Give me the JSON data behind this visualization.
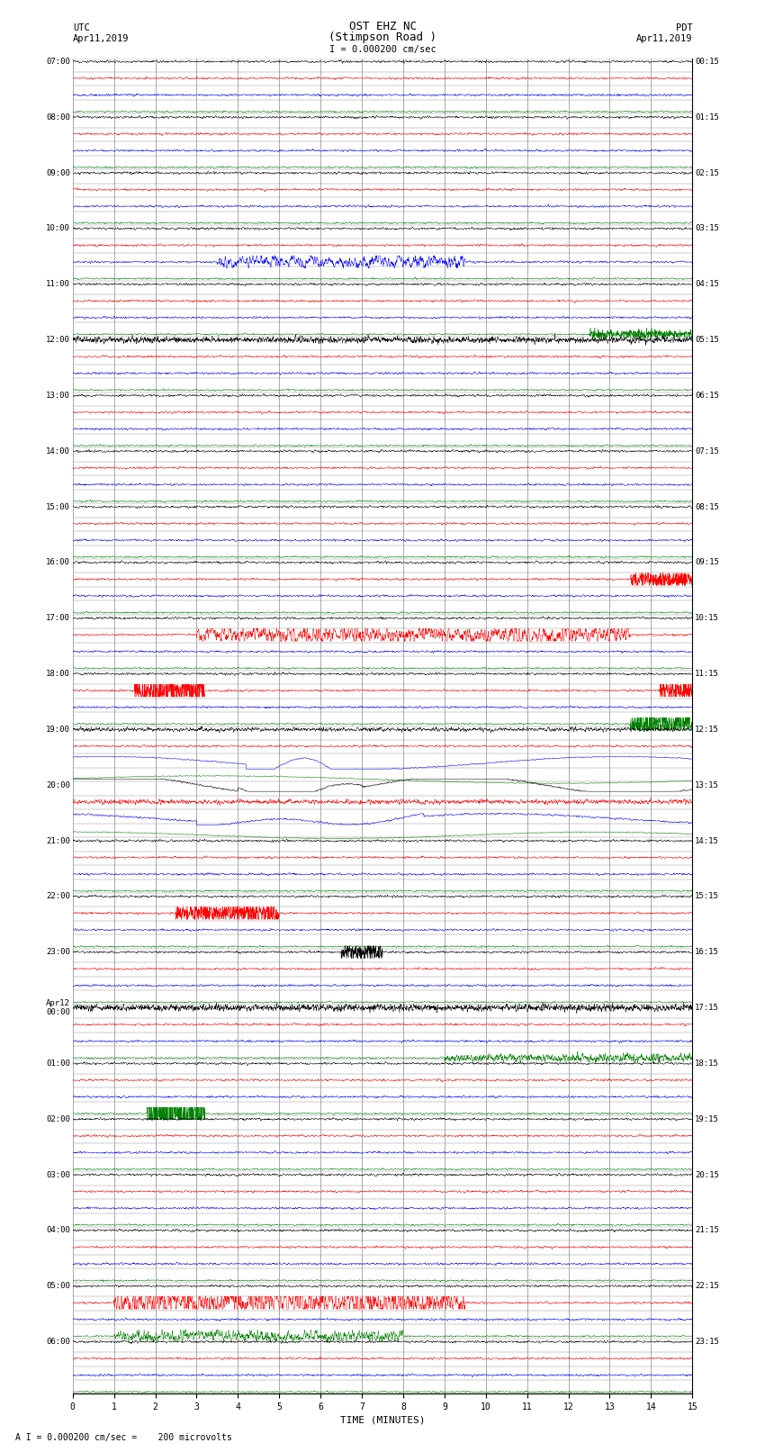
{
  "title_line1": "OST EHZ NC",
  "title_line2": "(Stimpson Road )",
  "scale_text": "I = 0.000200 cm/sec",
  "footer_text": "A I = 0.000200 cm/sec =    200 microvolts",
  "utc_label": "UTC",
  "utc_date": "Apr11,2019",
  "pdt_label": "PDT",
  "pdt_date": "Apr11,2019",
  "xlabel": "TIME (MINUTES)",
  "xlim": [
    0,
    15
  ],
  "xticks": [
    0,
    1,
    2,
    3,
    4,
    5,
    6,
    7,
    8,
    9,
    10,
    11,
    12,
    13,
    14,
    15
  ],
  "num_rows": 96,
  "colors": [
    "black",
    "red",
    "blue",
    "green"
  ],
  "bg_color": "white",
  "grid_color": "#888888",
  "left_hour_labels": [
    "07:00",
    "08:00",
    "09:00",
    "10:00",
    "11:00",
    "12:00",
    "13:00",
    "14:00",
    "15:00",
    "16:00",
    "17:00",
    "18:00",
    "19:00",
    "20:00",
    "21:00",
    "22:00",
    "23:00",
    "Apr12\n00:00",
    "01:00",
    "02:00",
    "03:00",
    "04:00",
    "05:00",
    "06:00"
  ],
  "right_hour_labels": [
    "00:15",
    "01:15",
    "02:15",
    "03:15",
    "04:15",
    "05:15",
    "06:15",
    "07:15",
    "08:15",
    "09:15",
    "10:15",
    "11:15",
    "12:15",
    "13:15",
    "14:15",
    "15:15",
    "16:15",
    "17:15",
    "18:15",
    "19:15",
    "20:15",
    "21:15",
    "22:15",
    "23:15"
  ],
  "noise_scale": 0.25,
  "seed": 12345,
  "n_points": 3000
}
